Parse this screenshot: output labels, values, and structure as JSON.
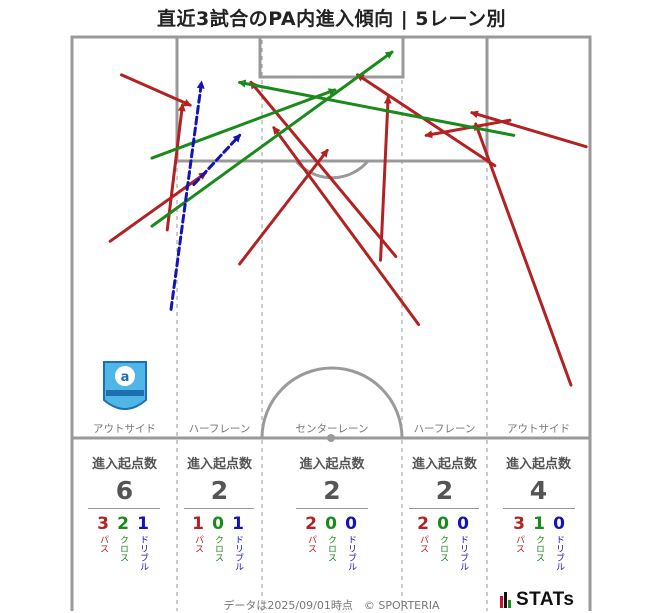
{
  "title": "直近3試合のPA内進入傾向 | 5レーン別",
  "lanes": [
    {
      "label": "アウトサイド",
      "head": "進入起点数",
      "total": "6",
      "pass": "3",
      "cross": "2",
      "dribble": "1"
    },
    {
      "label": "ハーフレーン",
      "head": "進入起点数",
      "total": "2",
      "pass": "1",
      "cross": "0",
      "dribble": "1"
    },
    {
      "label": "センターレーン",
      "head": "進入起点数",
      "total": "2",
      "pass": "2",
      "cross": "0",
      "dribble": "0"
    },
    {
      "label": "ハーフレーン",
      "head": "進入起点数",
      "total": "2",
      "pass": "2",
      "cross": "0",
      "dribble": "0"
    },
    {
      "label": "アウトサイド",
      "head": "進入起点数",
      "total": "4",
      "pass": "3",
      "cross": "1",
      "dribble": "0"
    }
  ],
  "breakdown_labels": {
    "pass": "パス",
    "cross": "クロス",
    "dribble": "ドリブル"
  },
  "colors": {
    "pass": "#b22222",
    "cross": "#1a8a1a",
    "dribble": "#1414b4",
    "pitch_line": "#9a9a9a"
  },
  "crest_text": "azul claro",
  "footer": "データは2025/09/01時点　© SPORTERIA",
  "brand": "STATs",
  "chart_data": {
    "type": "scatter",
    "description_units": "pitch coordinates in meters; x = lateral (0–68), y = distance from goal line (0–53)",
    "xlim": [
      0,
      68
    ],
    "ylim": [
      0,
      53
    ],
    "arrows": [
      {
        "kind": "pass",
        "from": [
          6.5,
          48
        ],
        "to": [
          15.5,
          44
        ]
      },
      {
        "kind": "pass",
        "from": [
          5,
          26
        ],
        "to": [
          17.5,
          35
        ]
      },
      {
        "kind": "pass",
        "from": [
          12.5,
          27.5
        ],
        "to": [
          14.5,
          44
        ]
      },
      {
        "kind": "pass",
        "from": [
          22,
          23
        ],
        "to": [
          33.5,
          38
        ]
      },
      {
        "kind": "pass",
        "from": [
          42.5,
          24
        ],
        "to": [
          23.5,
          47
        ]
      },
      {
        "kind": "pass",
        "from": [
          45.5,
          15
        ],
        "to": [
          26.5,
          41
        ]
      },
      {
        "kind": "pass",
        "from": [
          40.5,
          23.5
        ],
        "to": [
          41.5,
          45
        ]
      },
      {
        "kind": "pass",
        "from": [
          55.5,
          36
        ],
        "to": [
          37.5,
          48
        ]
      },
      {
        "kind": "pass",
        "from": [
          57.5,
          42
        ],
        "to": [
          46.5,
          40
        ]
      },
      {
        "kind": "pass",
        "from": [
          67.5,
          38.5
        ],
        "to": [
          52.5,
          43
        ]
      },
      {
        "kind": "pass",
        "from": [
          65.5,
          7
        ],
        "to": [
          53,
          41.5
        ]
      },
      {
        "kind": "cross",
        "from": [
          10.5,
          37
        ],
        "to": [
          34.5,
          46
        ]
      },
      {
        "kind": "cross",
        "from": [
          10.5,
          28
        ],
        "to": [
          42,
          51
        ]
      },
      {
        "kind": "cross",
        "from": [
          58,
          40
        ],
        "to": [
          22,
          47
        ]
      },
      {
        "kind": "dribble",
        "from": [
          13,
          17
        ],
        "to": [
          17,
          47
        ]
      },
      {
        "kind": "dribble",
        "from": [
          16,
          33.5
        ],
        "to": [
          22,
          40
        ]
      }
    ]
  }
}
